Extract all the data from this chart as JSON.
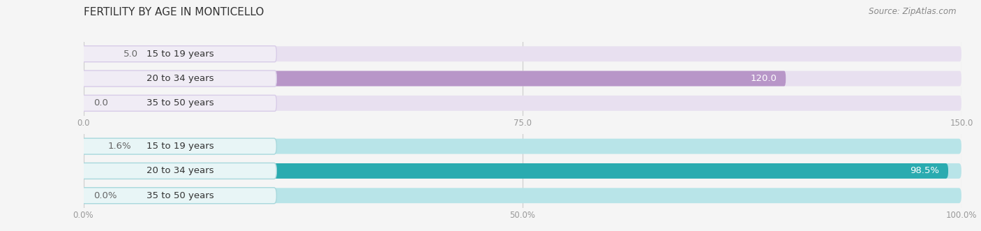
{
  "title": "FERTILITY BY AGE IN MONTICELLO",
  "source": "Source: ZipAtlas.com",
  "chart1": {
    "categories": [
      "15 to 19 years",
      "20 to 34 years",
      "35 to 50 years"
    ],
    "values": [
      5.0,
      120.0,
      0.0
    ],
    "xlim": [
      0,
      150
    ],
    "xticks": [
      0.0,
      75.0,
      150.0
    ],
    "bar_color": "#b896c8",
    "bar_bg_color": "#e8e0f0",
    "label_bg_color": "#f0ecf5",
    "label_border_color": "#d8cce8"
  },
  "chart2": {
    "categories": [
      "15 to 19 years",
      "20 to 34 years",
      "35 to 50 years"
    ],
    "values": [
      1.6,
      98.5,
      0.0
    ],
    "xlim": [
      0,
      100
    ],
    "xticks": [
      0.0,
      50.0,
      100.0
    ],
    "bar_color": "#2aabb0",
    "bar_bg_color": "#b8e4e8",
    "label_bg_color": "#e8f5f6",
    "label_border_color": "#a8d8dc"
  },
  "bar_height": 0.62,
  "category_label_fontsize": 9.5,
  "value_label_fontsize": 9.5,
  "title_fontsize": 11,
  "source_fontsize": 8.5,
  "background_color": "#f5f5f5",
  "title_color": "#333333",
  "source_color": "#888888",
  "tick_color": "#999999",
  "grid_color": "#cccccc",
  "value_label_dark_color": "#666666",
  "value_label_light_color": "#ffffff",
  "label_text_color": "#333333"
}
